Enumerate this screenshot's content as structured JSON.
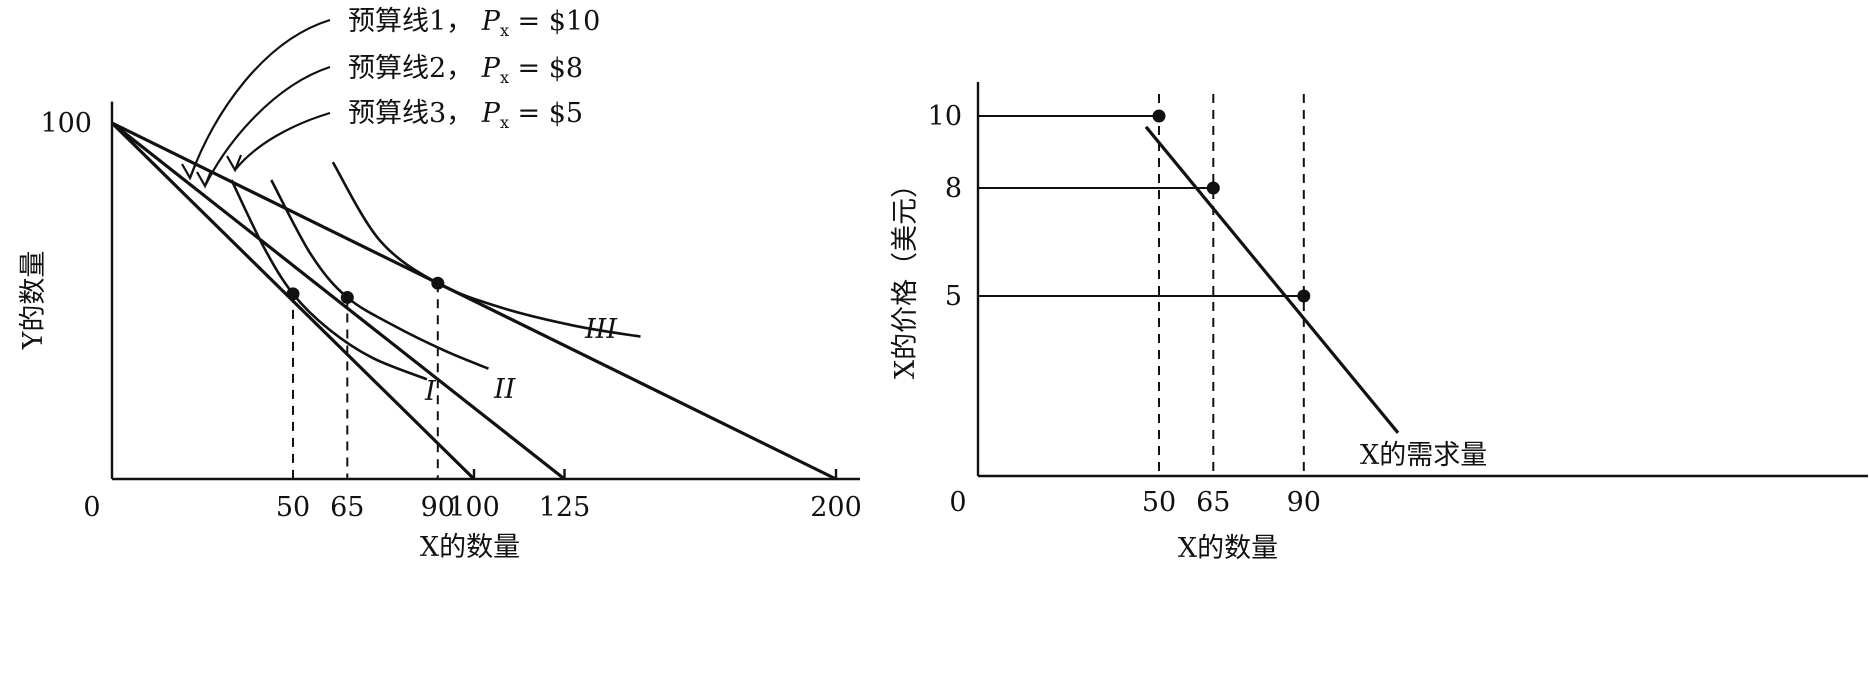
{
  "chart_data": [
    {
      "type": "line",
      "title": "",
      "xlabel": "X的数量",
      "ylabel": "Y的数量",
      "xlim": [
        0,
        200
      ],
      "ylim": [
        0,
        100
      ],
      "origin_label": "0",
      "x_ticks": [
        50,
        65,
        90,
        100,
        125,
        200
      ],
      "y_ticks": [
        100
      ],
      "series": [
        {
          "name": "预算线1",
          "legend_label": "预算线1，",
          "price_symbol": "P",
          "price_subscript": "x",
          "price_text": "= $10",
          "x": [
            0,
            100
          ],
          "y": [
            100,
            0
          ]
        },
        {
          "name": "预算线2",
          "legend_label": "预算线2，",
          "price_symbol": "P",
          "price_subscript": "x",
          "price_text": "= $8",
          "x": [
            0,
            125
          ],
          "y": [
            100,
            0
          ]
        },
        {
          "name": "预算线3",
          "legend_label": "预算线3，",
          "price_symbol": "P",
          "price_subscript": "x",
          "price_text": "= $5",
          "x": [
            0,
            200
          ],
          "y": [
            100,
            0
          ]
        }
      ],
      "indifference_curves": [
        {
          "name": "I",
          "x": [
            33,
            42,
            50,
            60,
            72,
            87
          ],
          "y": [
            84,
            65,
            52,
            42,
            34,
            28
          ]
        },
        {
          "name": "II",
          "x": [
            44,
            55,
            65,
            78,
            92,
            104
          ],
          "y": [
            84,
            63,
            51,
            43,
            36,
            31
          ]
        },
        {
          "name": "III",
          "x": [
            61,
            74,
            90,
            108,
            128,
            146
          ],
          "y": [
            89,
            67,
            55,
            48,
            43,
            40
          ]
        }
      ],
      "tangency_points": [
        {
          "x": 50,
          "y": 52
        },
        {
          "x": 65,
          "y": 51
        },
        {
          "x": 90,
          "y": 55
        }
      ]
    },
    {
      "type": "line",
      "title": "",
      "xlabel": "X的数量",
      "ylabel": "X的价格（美元）",
      "xlim": [
        0,
        150
      ],
      "ylim": [
        0,
        11
      ],
      "origin_label": "0",
      "x_ticks": [
        50,
        65,
        90
      ],
      "y_ticks": [
        5,
        8,
        10
      ],
      "points": [
        {
          "x": 50,
          "y": 10
        },
        {
          "x": 65,
          "y": 8
        },
        {
          "x": 90,
          "y": 5
        }
      ],
      "series": [
        {
          "name": "X的需求量",
          "x": [
            46,
            117
          ],
          "y": [
            9.7,
            1.2
          ]
        }
      ]
    }
  ]
}
